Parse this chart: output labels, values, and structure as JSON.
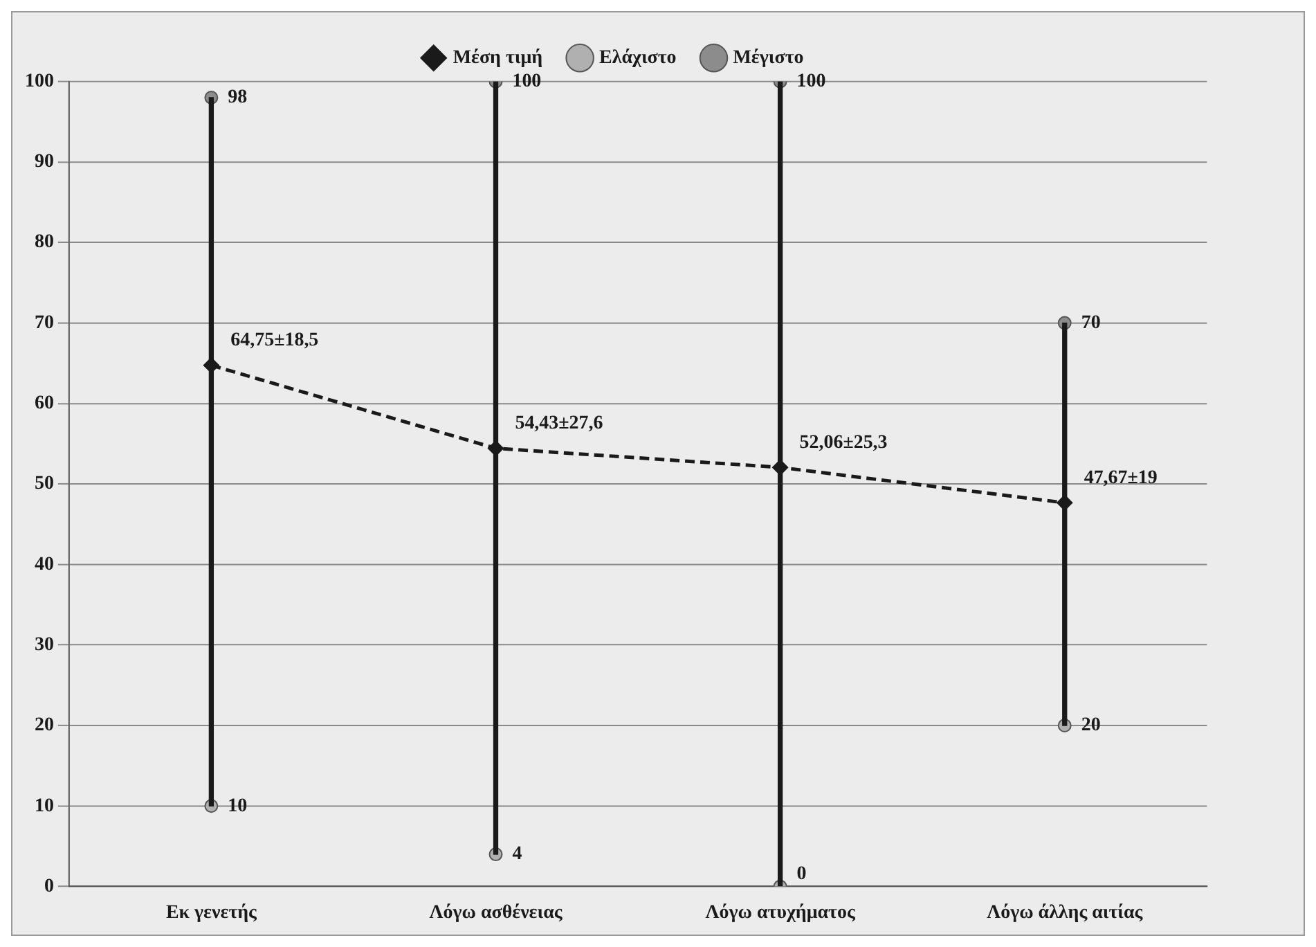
{
  "chart_data": {
    "type": "line",
    "categories": [
      "Εκ γενετής",
      "Λόγω ασθένειας",
      "Λόγω ατυχήματος",
      "Λόγω άλλης αιτίας"
    ],
    "series": [
      {
        "name": "Μέση τιμή",
        "color": "#1a1a1a",
        "marker": "diamond",
        "line_style": "dashed",
        "values": [
          64.75,
          54.43,
          52.06,
          47.67
        ],
        "value_labels": [
          "64,75±18,5",
          "54,43±27,6",
          "52,06±25,3",
          "47,67±19"
        ]
      },
      {
        "name": "Ελάχιστο",
        "type": "scatter",
        "color": "#b0b0b0",
        "marker": "circle",
        "values": [
          10,
          4,
          0,
          20
        ],
        "value_labels": [
          "10",
          "4",
          "0",
          "20"
        ]
      },
      {
        "name": "Μέγιστο",
        "type": "scatter",
        "color": "#8c8c8c",
        "marker": "circle",
        "values": [
          98,
          100,
          100,
          70
        ],
        "value_labels": [
          "98",
          "100",
          "100",
          "70"
        ]
      },
      {
        "type": "bar",
        "color": "#1a1a1a",
        "values": [
          88,
          96,
          100,
          50
        ],
        "base": [
          10,
          4,
          0,
          20
        ]
      }
    ],
    "ylim": [
      0,
      100
    ],
    "yticks": [
      0,
      10,
      20,
      30,
      40,
      50,
      60,
      70,
      80,
      90,
      100
    ],
    "grid": "y",
    "legend": "top"
  }
}
